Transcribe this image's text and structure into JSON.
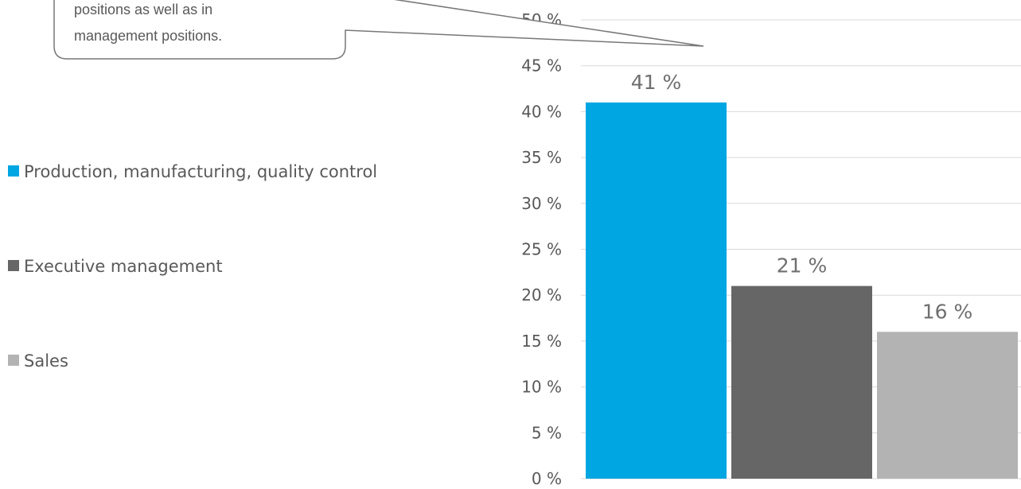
{
  "chart_data": {
    "type": "bar",
    "categories": [
      "Production, manufacturing, quality control",
      "Executive management",
      "Sales"
    ],
    "values": [
      41,
      21,
      16
    ],
    "value_labels": [
      "41 %",
      "21 %",
      "16 %"
    ],
    "colors": [
      "#00a6e2",
      "#666666",
      "#b3b3b3"
    ],
    "ylim": [
      0,
      50
    ],
    "y_ticks": [
      0,
      5,
      10,
      15,
      20,
      25,
      30,
      35,
      40,
      45,
      50
    ],
    "y_tick_labels": [
      "0 %",
      "5 %",
      "10 %",
      "15 %",
      "20 %",
      "25 %",
      "30 %",
      "35 %",
      "40 %",
      "45 %",
      "50 %"
    ],
    "grid": true,
    "legend_position": "left",
    "legend": [
      {
        "label": "Production, manufacturing, quality control",
        "color": "#00a6e2"
      },
      {
        "label": "Executive management",
        "color": "#666666"
      },
      {
        "label": "Sales",
        "color": "#b3b3b3"
      }
    ]
  },
  "callout": {
    "lines": [
      "positions as well as in",
      "management positions."
    ]
  }
}
